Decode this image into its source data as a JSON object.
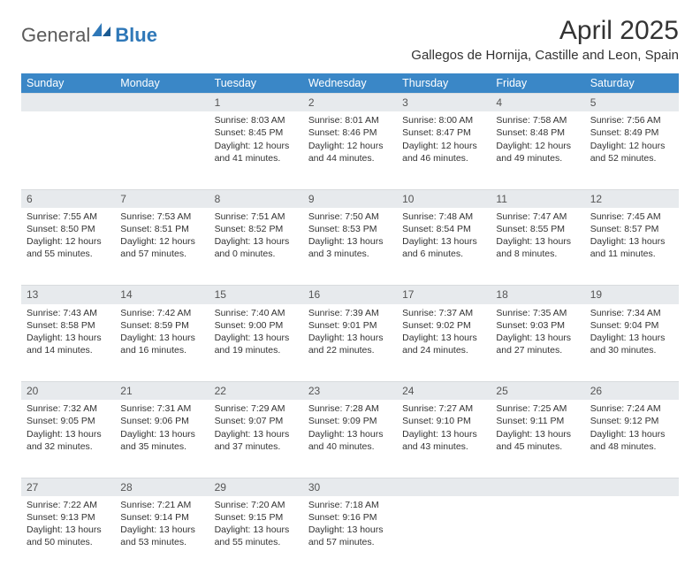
{
  "logo": {
    "textGray": "General",
    "textBlue": "Blue"
  },
  "title": "April 2025",
  "location": "Gallegos de Hornija, Castille and Leon, Spain",
  "colors": {
    "headerBar": "#3a87c7",
    "dayNumBg": "#e7eaed",
    "text": "#333333",
    "logoGray": "#5a5a5a",
    "logoBlue": "#2f78b8"
  },
  "dayHeaders": [
    "Sunday",
    "Monday",
    "Tuesday",
    "Wednesday",
    "Thursday",
    "Friday",
    "Saturday"
  ],
  "weeks": [
    [
      null,
      null,
      {
        "n": "1",
        "sr": "8:03 AM",
        "ss": "8:45 PM",
        "dl": "12 hours and 41 minutes."
      },
      {
        "n": "2",
        "sr": "8:01 AM",
        "ss": "8:46 PM",
        "dl": "12 hours and 44 minutes."
      },
      {
        "n": "3",
        "sr": "8:00 AM",
        "ss": "8:47 PM",
        "dl": "12 hours and 46 minutes."
      },
      {
        "n": "4",
        "sr": "7:58 AM",
        "ss": "8:48 PM",
        "dl": "12 hours and 49 minutes."
      },
      {
        "n": "5",
        "sr": "7:56 AM",
        "ss": "8:49 PM",
        "dl": "12 hours and 52 minutes."
      }
    ],
    [
      {
        "n": "6",
        "sr": "7:55 AM",
        "ss": "8:50 PM",
        "dl": "12 hours and 55 minutes."
      },
      {
        "n": "7",
        "sr": "7:53 AM",
        "ss": "8:51 PM",
        "dl": "12 hours and 57 minutes."
      },
      {
        "n": "8",
        "sr": "7:51 AM",
        "ss": "8:52 PM",
        "dl": "13 hours and 0 minutes."
      },
      {
        "n": "9",
        "sr": "7:50 AM",
        "ss": "8:53 PM",
        "dl": "13 hours and 3 minutes."
      },
      {
        "n": "10",
        "sr": "7:48 AM",
        "ss": "8:54 PM",
        "dl": "13 hours and 6 minutes."
      },
      {
        "n": "11",
        "sr": "7:47 AM",
        "ss": "8:55 PM",
        "dl": "13 hours and 8 minutes."
      },
      {
        "n": "12",
        "sr": "7:45 AM",
        "ss": "8:57 PM",
        "dl": "13 hours and 11 minutes."
      }
    ],
    [
      {
        "n": "13",
        "sr": "7:43 AM",
        "ss": "8:58 PM",
        "dl": "13 hours and 14 minutes."
      },
      {
        "n": "14",
        "sr": "7:42 AM",
        "ss": "8:59 PM",
        "dl": "13 hours and 16 minutes."
      },
      {
        "n": "15",
        "sr": "7:40 AM",
        "ss": "9:00 PM",
        "dl": "13 hours and 19 minutes."
      },
      {
        "n": "16",
        "sr": "7:39 AM",
        "ss": "9:01 PM",
        "dl": "13 hours and 22 minutes."
      },
      {
        "n": "17",
        "sr": "7:37 AM",
        "ss": "9:02 PM",
        "dl": "13 hours and 24 minutes."
      },
      {
        "n": "18",
        "sr": "7:35 AM",
        "ss": "9:03 PM",
        "dl": "13 hours and 27 minutes."
      },
      {
        "n": "19",
        "sr": "7:34 AM",
        "ss": "9:04 PM",
        "dl": "13 hours and 30 minutes."
      }
    ],
    [
      {
        "n": "20",
        "sr": "7:32 AM",
        "ss": "9:05 PM",
        "dl": "13 hours and 32 minutes."
      },
      {
        "n": "21",
        "sr": "7:31 AM",
        "ss": "9:06 PM",
        "dl": "13 hours and 35 minutes."
      },
      {
        "n": "22",
        "sr": "7:29 AM",
        "ss": "9:07 PM",
        "dl": "13 hours and 37 minutes."
      },
      {
        "n": "23",
        "sr": "7:28 AM",
        "ss": "9:09 PM",
        "dl": "13 hours and 40 minutes."
      },
      {
        "n": "24",
        "sr": "7:27 AM",
        "ss": "9:10 PM",
        "dl": "13 hours and 43 minutes."
      },
      {
        "n": "25",
        "sr": "7:25 AM",
        "ss": "9:11 PM",
        "dl": "13 hours and 45 minutes."
      },
      {
        "n": "26",
        "sr": "7:24 AM",
        "ss": "9:12 PM",
        "dl": "13 hours and 48 minutes."
      }
    ],
    [
      {
        "n": "27",
        "sr": "7:22 AM",
        "ss": "9:13 PM",
        "dl": "13 hours and 50 minutes."
      },
      {
        "n": "28",
        "sr": "7:21 AM",
        "ss": "9:14 PM",
        "dl": "13 hours and 53 minutes."
      },
      {
        "n": "29",
        "sr": "7:20 AM",
        "ss": "9:15 PM",
        "dl": "13 hours and 55 minutes."
      },
      {
        "n": "30",
        "sr": "7:18 AM",
        "ss": "9:16 PM",
        "dl": "13 hours and 57 minutes."
      },
      null,
      null,
      null
    ]
  ],
  "labels": {
    "sunrise": "Sunrise:",
    "sunset": "Sunset:",
    "daylight": "Daylight:"
  }
}
